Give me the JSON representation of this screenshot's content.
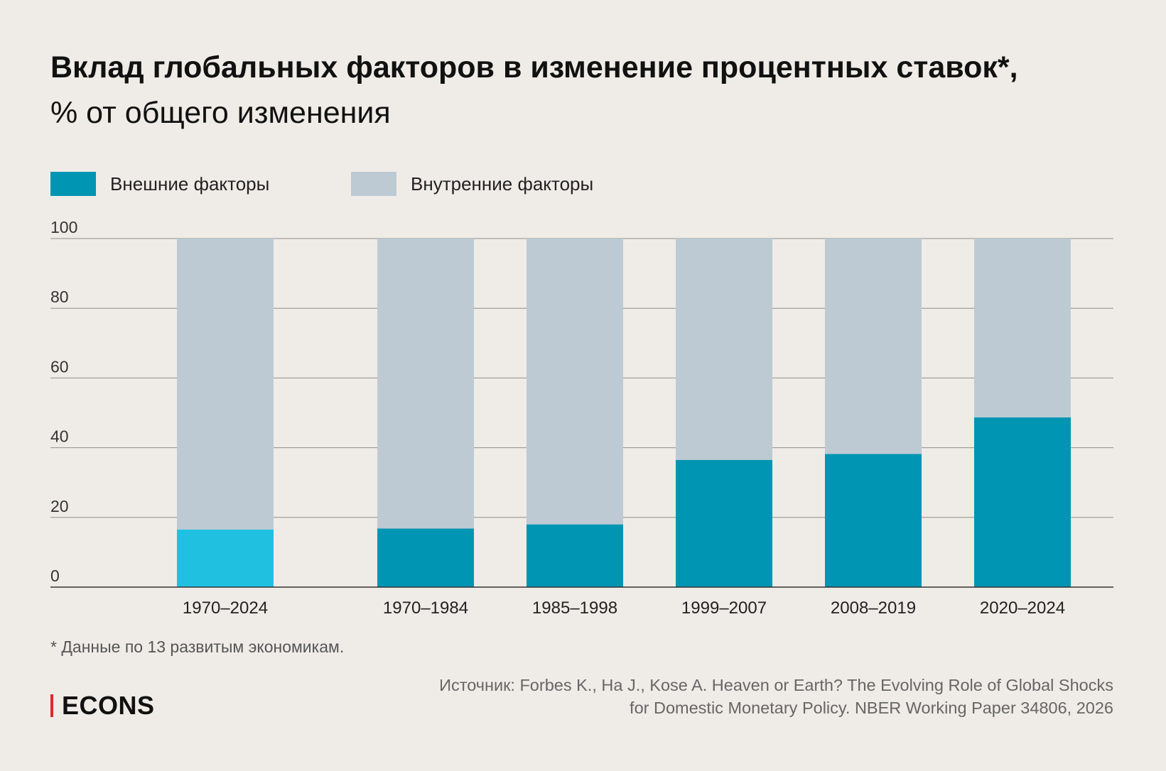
{
  "title": "Вклад глобальных факторов в изменение процентных ставок*,",
  "subtitle": "% от общего изменения",
  "legend": [
    {
      "label": "Внешние факторы",
      "color": "#0095B3"
    },
    {
      "label": "Внутренние факторы",
      "color": "#BDCAD3"
    }
  ],
  "chart_data": {
    "type": "bar",
    "stacked": true,
    "title": "Вклад глобальных факторов в изменение процентных ставок*,",
    "subtitle": "% от общего изменения",
    "categories": [
      "1970–2024",
      "1970–1984",
      "1985–1998",
      "1999–2007",
      "2008–2019",
      "2020–2024"
    ],
    "series": [
      {
        "name": "Внешние факторы",
        "values": [
          16.5,
          16.8,
          18,
          36.5,
          38.2,
          48.7
        ],
        "color": "#0095B3",
        "highlight_color": "#20C1E0",
        "highlight_index": 0
      },
      {
        "name": "Внутренние факторы",
        "values": [
          83.5,
          83.2,
          82,
          63.5,
          61.8,
          51.3
        ],
        "color": "#BDCAD3"
      }
    ],
    "ylim": [
      0,
      100
    ],
    "yticks": [
      0,
      20,
      40,
      60,
      80,
      100
    ],
    "grid": true,
    "legend_position": "top-left"
  },
  "footnote": "* Данные по 13 развитым экономикам.",
  "source": {
    "line1": "Источник: Forbes K., Ha J., Kose A. Heaven or Earth? The Evolving Role of Global Shocks",
    "line2": "for Domestic Monetary Policy. NBER Working Paper 34806, 2026"
  },
  "logo": "ECONS"
}
